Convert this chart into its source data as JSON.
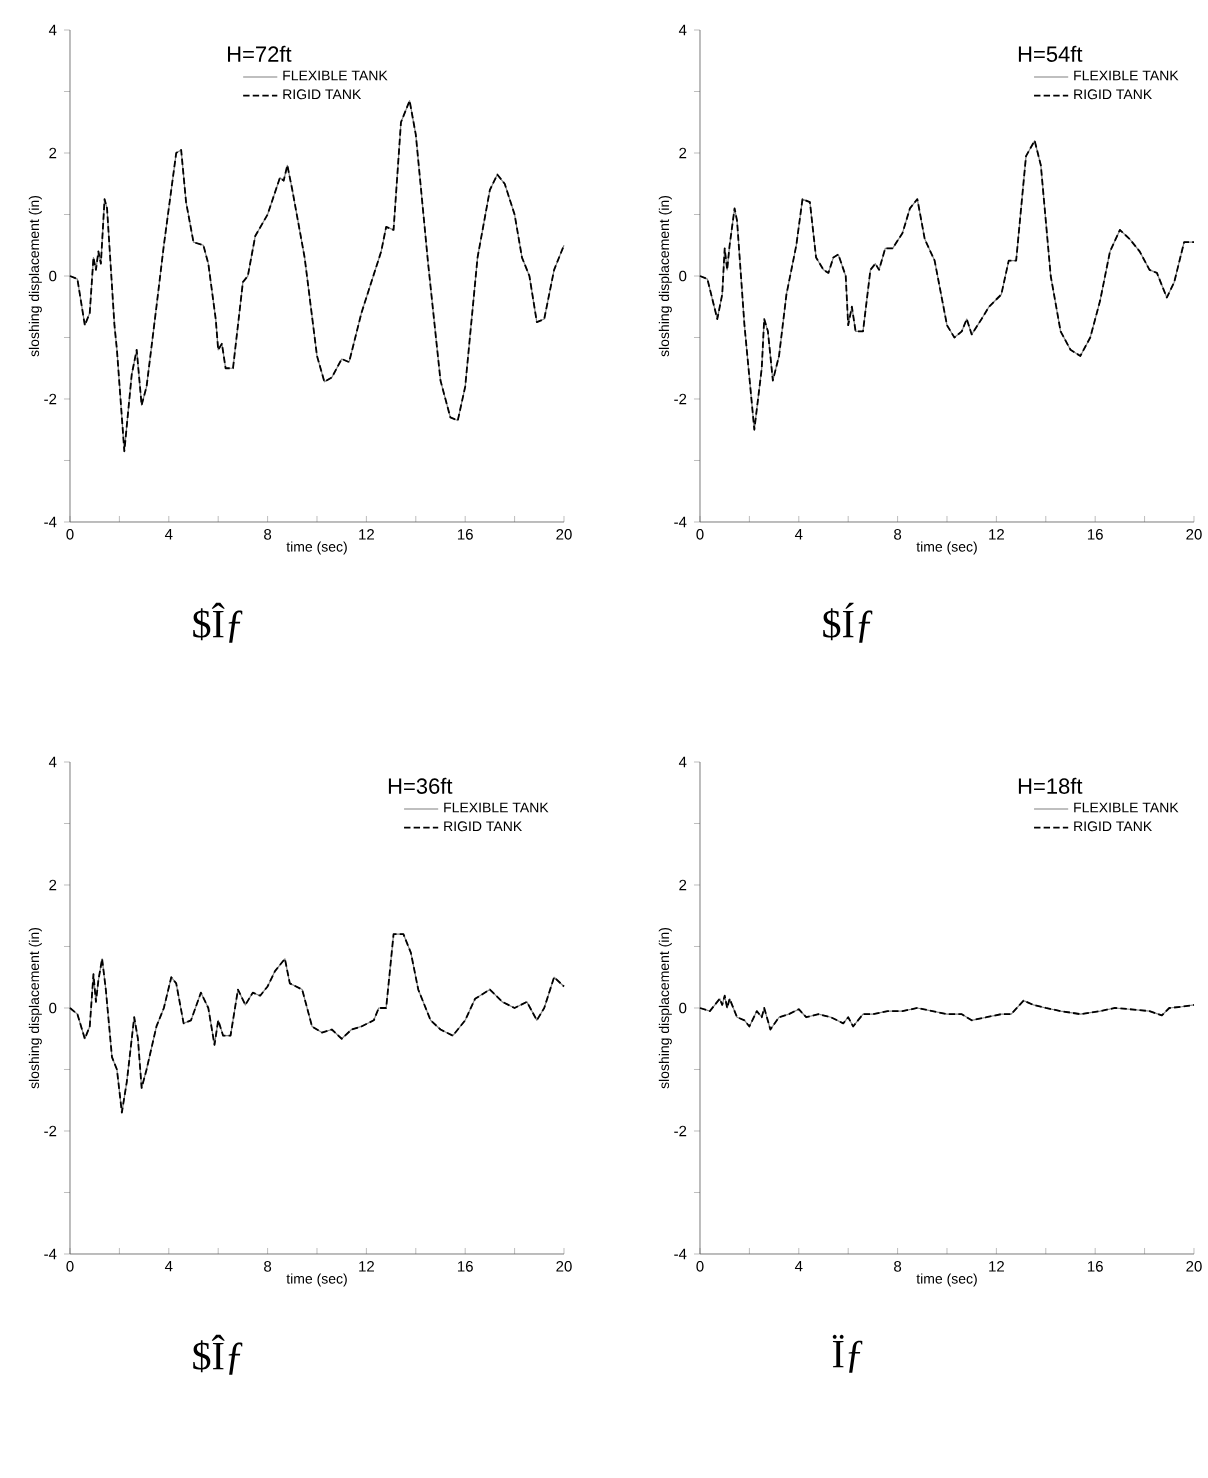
{
  "chart_data": [
    {
      "type": "line",
      "legend_title": "H=72ft",
      "xlabel": "time (sec)",
      "ylabel": "sloshing displacement (in)",
      "annotations": [
        "$Îƒ"
      ],
      "legend": "top",
      "xlim": [
        0,
        20
      ],
      "ylim": [
        -4,
        4
      ],
      "xticks": [
        0,
        {
          "value": 2,
          "label": null
        },
        4,
        {
          "value": 6,
          "label": null
        },
        8,
        {
          "value": 10,
          "label": null
        },
        12,
        {
          "value": 14,
          "label": null
        },
        16,
        {
          "value": 18,
          "label": null
        },
        20
      ],
      "yticks": [
        -4,
        {
          "value": -3,
          "label": null
        },
        -2,
        {
          "value": -1,
          "label": null
        },
        0,
        {
          "value": 1,
          "label": null
        },
        2,
        {
          "value": 3,
          "label": null
        },
        4
      ],
      "x": [
        0,
        0.3,
        0.6,
        0.8,
        0.95,
        1.05,
        1.15,
        1.25,
        1.4,
        1.5,
        1.8,
        1.9,
        2.2,
        2.5,
        2.7,
        2.9,
        3.1,
        3.5,
        3.8,
        4.3,
        4.5,
        4.7,
        5.0,
        5.4,
        5.6,
        5.9,
        6.0,
        6.15,
        6.3,
        6.6,
        7.0,
        7.2,
        7.5,
        8.0,
        8.5,
        8.65,
        8.8,
        9.0,
        9.5,
        10.0,
        10.3,
        10.6,
        11.0,
        11.3,
        11.8,
        12.2,
        12.6,
        12.8,
        13.1,
        13.4,
        13.75,
        14.0,
        14.5,
        15.0,
        15.4,
        15.7,
        16.0,
        16.5,
        17.0,
        17.3,
        17.6,
        18.0,
        18.3,
        18.6,
        18.9,
        19.2,
        19.6,
        20
      ],
      "series": [
        {
          "name": "FLEXIBLE TANK",
          "color": "#808080",
          "line_style": "solid",
          "values": [
            0,
            -0.05,
            -0.8,
            -0.6,
            0.3,
            0.1,
            0.4,
            0.2,
            1.25,
            1.1,
            -0.8,
            -1.2,
            -2.85,
            -1.6,
            -1.2,
            -2.1,
            -1.8,
            -0.5,
            0.5,
            2.0,
            2.05,
            1.2,
            0.55,
            0.5,
            0.2,
            -0.7,
            -1.2,
            -1.1,
            -1.5,
            -1.5,
            -0.1,
            0.0,
            0.65,
            1.0,
            1.6,
            1.55,
            1.8,
            1.4,
            0.3,
            -1.3,
            -1.72,
            -1.65,
            -1.35,
            -1.4,
            -0.6,
            -0.1,
            0.4,
            0.8,
            0.75,
            2.5,
            2.85,
            2.3,
            0.2,
            -1.7,
            -2.3,
            -2.35,
            -1.8,
            0.3,
            1.4,
            1.65,
            1.5,
            1.0,
            0.3,
            0.0,
            -0.75,
            -0.7,
            0.1,
            0.5
          ]
        },
        {
          "name": "RIGID TANK",
          "color": "#000000",
          "line_style": "dashed",
          "values": [
            0,
            -0.05,
            -0.8,
            -0.6,
            0.3,
            0.1,
            0.4,
            0.2,
            1.25,
            1.1,
            -0.8,
            -1.2,
            -2.85,
            -1.6,
            -1.2,
            -2.1,
            -1.8,
            -0.5,
            0.5,
            2.0,
            2.05,
            1.2,
            0.55,
            0.5,
            0.2,
            -0.7,
            -1.2,
            -1.1,
            -1.5,
            -1.5,
            -0.1,
            0.0,
            0.65,
            1.0,
            1.6,
            1.55,
            1.8,
            1.4,
            0.3,
            -1.3,
            -1.72,
            -1.65,
            -1.35,
            -1.4,
            -0.6,
            -0.1,
            0.4,
            0.8,
            0.75,
            2.5,
            2.85,
            2.3,
            0.2,
            -1.7,
            -2.3,
            -2.35,
            -1.8,
            0.3,
            1.4,
            1.65,
            1.5,
            1.0,
            0.3,
            0.0,
            -0.75,
            -0.7,
            0.1,
            0.5
          ]
        }
      ]
    },
    {
      "type": "line",
      "legend_title": "H=54ft",
      "xlabel": "time (sec)",
      "ylabel": "sloshing displacement (in)",
      "annotations": [
        "$Íƒ"
      ],
      "legend": "top right",
      "xlim": [
        0,
        20
      ],
      "ylim": [
        -4,
        4
      ],
      "xticks": [
        0,
        {
          "value": 2,
          "label": null
        },
        4,
        {
          "value": 6,
          "label": null
        },
        8,
        {
          "value": 10,
          "label": null
        },
        12,
        {
          "value": 14,
          "label": null
        },
        16,
        {
          "value": 18,
          "label": null
        },
        20
      ],
      "yticks": [
        -4,
        {
          "value": -3,
          "label": null
        },
        -2,
        {
          "value": -1,
          "label": null
        },
        0,
        {
          "value": 1,
          "label": null
        },
        2,
        {
          "value": 3,
          "label": null
        },
        4
      ],
      "x": [
        0,
        0.3,
        0.7,
        0.9,
        1.0,
        1.1,
        1.2,
        1.4,
        1.5,
        1.8,
        2.2,
        2.5,
        2.6,
        2.75,
        2.95,
        3.2,
        3.5,
        3.9,
        4.15,
        4.45,
        4.7,
        5.0,
        5.2,
        5.4,
        5.6,
        5.9,
        6.0,
        6.15,
        6.3,
        6.6,
        6.9,
        7.1,
        7.25,
        7.5,
        7.8,
        8.2,
        8.5,
        8.8,
        9.1,
        9.5,
        10.0,
        10.3,
        10.6,
        10.8,
        11.0,
        11.4,
        11.7,
        12.2,
        12.5,
        12.8,
        13.2,
        13.55,
        13.8,
        14.2,
        14.6,
        15.0,
        15.4,
        15.8,
        16.2,
        16.6,
        17.0,
        17.4,
        17.8,
        18.2,
        18.5,
        18.9,
        19.2,
        19.6,
        20
      ],
      "series": [
        {
          "name": "FLEXIBLE TANK",
          "color": "#808080",
          "line_style": "solid",
          "values": [
            0,
            -0.05,
            -0.7,
            -0.3,
            0.45,
            0.1,
            0.5,
            1.1,
            0.9,
            -0.8,
            -2.5,
            -1.5,
            -0.7,
            -0.9,
            -1.7,
            -1.3,
            -0.3,
            0.5,
            1.25,
            1.2,
            0.3,
            0.1,
            0.05,
            0.3,
            0.35,
            0.0,
            -0.8,
            -0.5,
            -0.9,
            -0.9,
            0.1,
            0.2,
            0.1,
            0.45,
            0.45,
            0.7,
            1.1,
            1.25,
            0.6,
            0.25,
            -0.8,
            -1.0,
            -0.9,
            -0.7,
            -0.95,
            -0.7,
            -0.5,
            -0.3,
            0.25,
            0.25,
            1.95,
            2.2,
            1.8,
            0.0,
            -0.9,
            -1.2,
            -1.3,
            -1.0,
            -0.4,
            0.4,
            0.75,
            0.6,
            0.4,
            0.1,
            0.05,
            -0.35,
            -0.1,
            0.55,
            0.55
          ]
        },
        {
          "name": "RIGID TANK",
          "color": "#000000",
          "line_style": "dashed",
          "values": [
            0,
            -0.05,
            -0.7,
            -0.3,
            0.45,
            0.1,
            0.5,
            1.1,
            0.9,
            -0.8,
            -2.5,
            -1.5,
            -0.7,
            -0.9,
            -1.7,
            -1.3,
            -0.3,
            0.5,
            1.25,
            1.2,
            0.3,
            0.1,
            0.05,
            0.3,
            0.35,
            0.0,
            -0.8,
            -0.5,
            -0.9,
            -0.9,
            0.1,
            0.2,
            0.1,
            0.45,
            0.45,
            0.7,
            1.1,
            1.25,
            0.6,
            0.25,
            -0.8,
            -1.0,
            -0.9,
            -0.7,
            -0.95,
            -0.7,
            -0.5,
            -0.3,
            0.25,
            0.25,
            1.95,
            2.2,
            1.8,
            0.0,
            -0.9,
            -1.2,
            -1.3,
            -1.0,
            -0.4,
            0.4,
            0.75,
            0.6,
            0.4,
            0.1,
            0.05,
            -0.35,
            -0.1,
            0.55,
            0.55
          ]
        }
      ]
    },
    {
      "type": "line",
      "legend_title": "H=36ft",
      "xlabel": "time (sec)",
      "ylabel": "sloshing displacement (in)",
      "annotations": [
        "$Îƒ"
      ],
      "legend": "top right",
      "xlim": [
        0,
        20
      ],
      "ylim": [
        -4,
        4
      ],
      "xticks": [
        0,
        {
          "value": 2,
          "label": null
        },
        4,
        {
          "value": 6,
          "label": null
        },
        8,
        {
          "value": 10,
          "label": null
        },
        12,
        {
          "value": 14,
          "label": null
        },
        16,
        {
          "value": 18,
          "label": null
        },
        20
      ],
      "yticks": [
        -4,
        {
          "value": -3,
          "label": null
        },
        -2,
        {
          "value": -1,
          "label": null
        },
        0,
        {
          "value": 1,
          "label": null
        },
        2,
        {
          "value": 3,
          "label": null
        },
        4
      ],
      "x": [
        0,
        0.3,
        0.6,
        0.8,
        0.95,
        1.05,
        1.15,
        1.3,
        1.45,
        1.7,
        1.9,
        2.1,
        2.3,
        2.6,
        2.75,
        2.9,
        3.1,
        3.5,
        3.8,
        4.1,
        4.3,
        4.6,
        4.9,
        5.3,
        5.6,
        5.85,
        6.0,
        6.2,
        6.5,
        6.8,
        7.1,
        7.4,
        7.7,
        8.0,
        8.3,
        8.7,
        8.9,
        9.4,
        9.8,
        10.2,
        10.6,
        11.0,
        11.4,
        11.8,
        12.3,
        12.5,
        12.8,
        13.1,
        13.5,
        13.8,
        14.1,
        14.6,
        15.0,
        15.5,
        16.0,
        16.4,
        17.0,
        17.5,
        18.0,
        18.5,
        18.9,
        19.2,
        19.6,
        20
      ],
      "series": [
        {
          "name": "FLEXIBLE TANK",
          "color": "#808080",
          "line_style": "solid",
          "values": [
            0,
            -0.1,
            -0.5,
            -0.3,
            0.55,
            0.1,
            0.45,
            0.8,
            0.3,
            -0.8,
            -1.0,
            -1.7,
            -1.2,
            -0.15,
            -0.5,
            -1.3,
            -1.0,
            -0.3,
            0.0,
            0.5,
            0.4,
            -0.25,
            -0.2,
            0.25,
            0.0,
            -0.6,
            -0.2,
            -0.45,
            -0.45,
            0.3,
            0.05,
            0.25,
            0.2,
            0.35,
            0.6,
            0.8,
            0.4,
            0.3,
            -0.3,
            -0.4,
            -0.35,
            -0.5,
            -0.35,
            -0.3,
            -0.2,
            0.0,
            0.0,
            1.2,
            1.2,
            0.9,
            0.3,
            -0.2,
            -0.35,
            -0.45,
            -0.2,
            0.15,
            0.3,
            0.1,
            0.0,
            0.1,
            -0.2,
            0.0,
            0.5,
            0.35
          ]
        },
        {
          "name": "RIGID TANK",
          "color": "#000000",
          "line_style": "dashed",
          "values": [
            0,
            -0.1,
            -0.5,
            -0.3,
            0.55,
            0.1,
            0.45,
            0.8,
            0.3,
            -0.8,
            -1.0,
            -1.7,
            -1.2,
            -0.15,
            -0.5,
            -1.3,
            -1.0,
            -0.3,
            0.0,
            0.5,
            0.4,
            -0.25,
            -0.2,
            0.25,
            0.0,
            -0.6,
            -0.2,
            -0.45,
            -0.45,
            0.3,
            0.05,
            0.25,
            0.2,
            0.35,
            0.6,
            0.8,
            0.4,
            0.3,
            -0.3,
            -0.4,
            -0.35,
            -0.5,
            -0.35,
            -0.3,
            -0.2,
            0.0,
            0.0,
            1.2,
            1.2,
            0.9,
            0.3,
            -0.2,
            -0.35,
            -0.45,
            -0.2,
            0.15,
            0.3,
            0.1,
            0.0,
            0.1,
            -0.2,
            0.0,
            0.5,
            0.35
          ]
        }
      ]
    },
    {
      "type": "line",
      "legend_title": "H=18ft",
      "xlabel": "time (sec)",
      "ylabel": "sloshing displacement (in)",
      "annotations": [
        "Ïƒ"
      ],
      "legend": "top right",
      "xlim": [
        0,
        20
      ],
      "ylim": [
        -4,
        4
      ],
      "xticks": [
        0,
        {
          "value": 2,
          "label": null
        },
        4,
        {
          "value": 6,
          "label": null
        },
        8,
        {
          "value": 10,
          "label": null
        },
        12,
        {
          "value": 14,
          "label": null
        },
        16,
        {
          "value": 18,
          "label": null
        },
        20
      ],
      "yticks": [
        -4,
        {
          "value": -3,
          "label": null
        },
        -2,
        {
          "value": -1,
          "label": null
        },
        0,
        {
          "value": 1,
          "label": null
        },
        2,
        {
          "value": 3,
          "label": null
        },
        4
      ],
      "x": [
        0,
        0.4,
        0.8,
        0.9,
        1.0,
        1.1,
        1.2,
        1.5,
        1.8,
        2.0,
        2.3,
        2.5,
        2.6,
        2.85,
        3.2,
        3.6,
        4.0,
        4.3,
        4.8,
        5.3,
        5.8,
        6.0,
        6.2,
        6.6,
        7.0,
        7.6,
        8.2,
        8.8,
        9.4,
        10.0,
        10.6,
        11.0,
        11.6,
        12.2,
        12.6,
        13.1,
        13.5,
        14.0,
        14.6,
        15.4,
        16.2,
        16.8,
        17.4,
        18.2,
        18.7,
        19.0,
        19.5,
        20
      ],
      "series": [
        {
          "name": "FLEXIBLE TANK",
          "color": "#808080",
          "line_style": "solid",
          "values": [
            0,
            -0.05,
            0.15,
            0.05,
            0.2,
            0.0,
            0.15,
            -0.15,
            -0.2,
            -0.3,
            -0.05,
            -0.15,
            0.0,
            -0.35,
            -0.15,
            -0.1,
            -0.02,
            -0.15,
            -0.1,
            -0.15,
            -0.25,
            -0.15,
            -0.3,
            -0.1,
            -0.1,
            -0.05,
            -0.05,
            0.0,
            -0.05,
            -0.1,
            -0.1,
            -0.2,
            -0.15,
            -0.1,
            -0.1,
            0.12,
            0.05,
            0.0,
            -0.05,
            -0.1,
            -0.05,
            0.0,
            -0.02,
            -0.05,
            -0.12,
            0.0,
            0.02,
            0.05
          ]
        },
        {
          "name": "RIGID TANK",
          "color": "#000000",
          "line_style": "dashed",
          "values": [
            0,
            -0.05,
            0.15,
            0.05,
            0.2,
            0.0,
            0.15,
            -0.15,
            -0.2,
            -0.3,
            -0.05,
            -0.15,
            0.0,
            -0.35,
            -0.15,
            -0.1,
            -0.02,
            -0.15,
            -0.1,
            -0.15,
            -0.25,
            -0.15,
            -0.3,
            -0.1,
            -0.1,
            -0.05,
            -0.05,
            0.0,
            -0.05,
            -0.1,
            -0.1,
            -0.2,
            -0.15,
            -0.1,
            -0.1,
            0.12,
            0.05,
            0.0,
            -0.05,
            -0.1,
            -0.05,
            0.0,
            -0.02,
            -0.05,
            -0.12,
            0.0,
            0.02,
            0.05
          ]
        }
      ]
    }
  ]
}
